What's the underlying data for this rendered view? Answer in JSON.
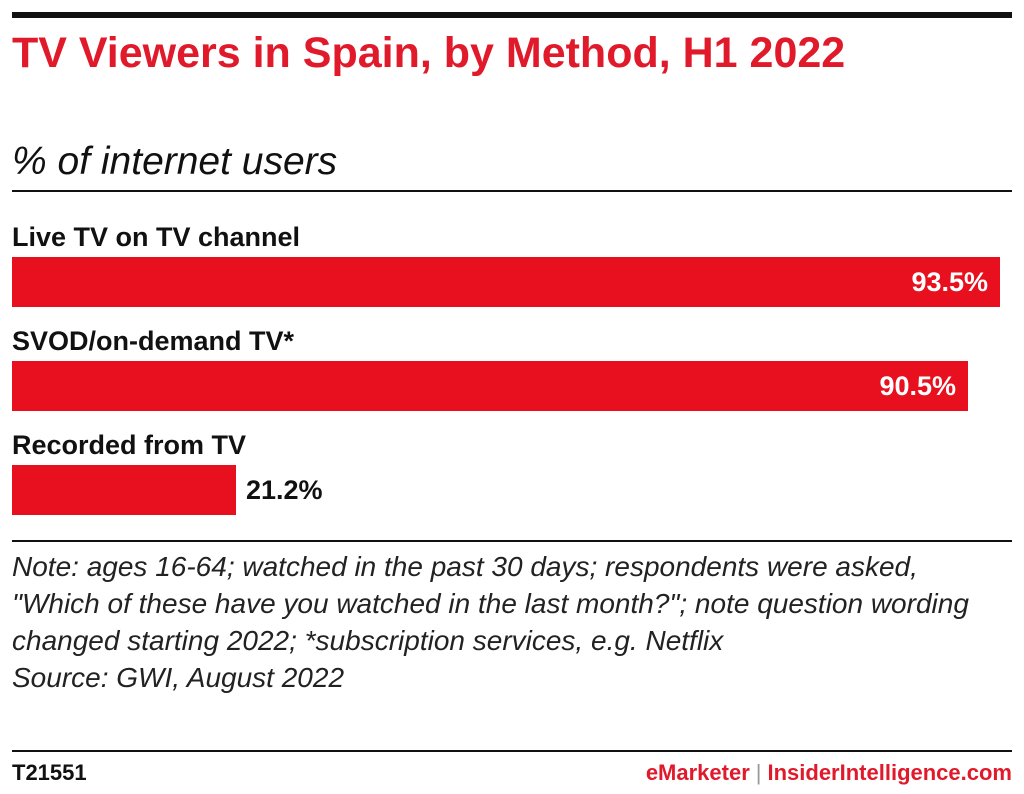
{
  "chart_data": {
    "type": "bar",
    "orientation": "horizontal",
    "title": "TV Viewers in Spain, by Method, H1 2022",
    "subtitle": "% of internet users",
    "categories": [
      "Live TV on TV channel",
      "SVOD/on-demand TV*",
      "Recorded from TV"
    ],
    "values": [
      93.5,
      90.5,
      21.2
    ],
    "value_labels": [
      "93.5%",
      "90.5%",
      "21.2%"
    ],
    "xlim": [
      0,
      93.5
    ],
    "grid": false,
    "bar_color": "#e8101e"
  },
  "note": {
    "lead": "Note:",
    "text": " ages 16-64; watched in the past 30 days; respondents were asked, \"Which of these have you watched in the last month?\"; note question wording changed starting 2022; *subscription services, e.g. Netflix"
  },
  "source": "Source: GWI, August 2022",
  "footer": {
    "chart_id": "T21551",
    "brand_primary": "eMarketer",
    "separator": "|",
    "brand_secondary": "InsiderIntelligence.com"
  },
  "colors": {
    "title": "#e01a2b",
    "text": "#111111"
  }
}
